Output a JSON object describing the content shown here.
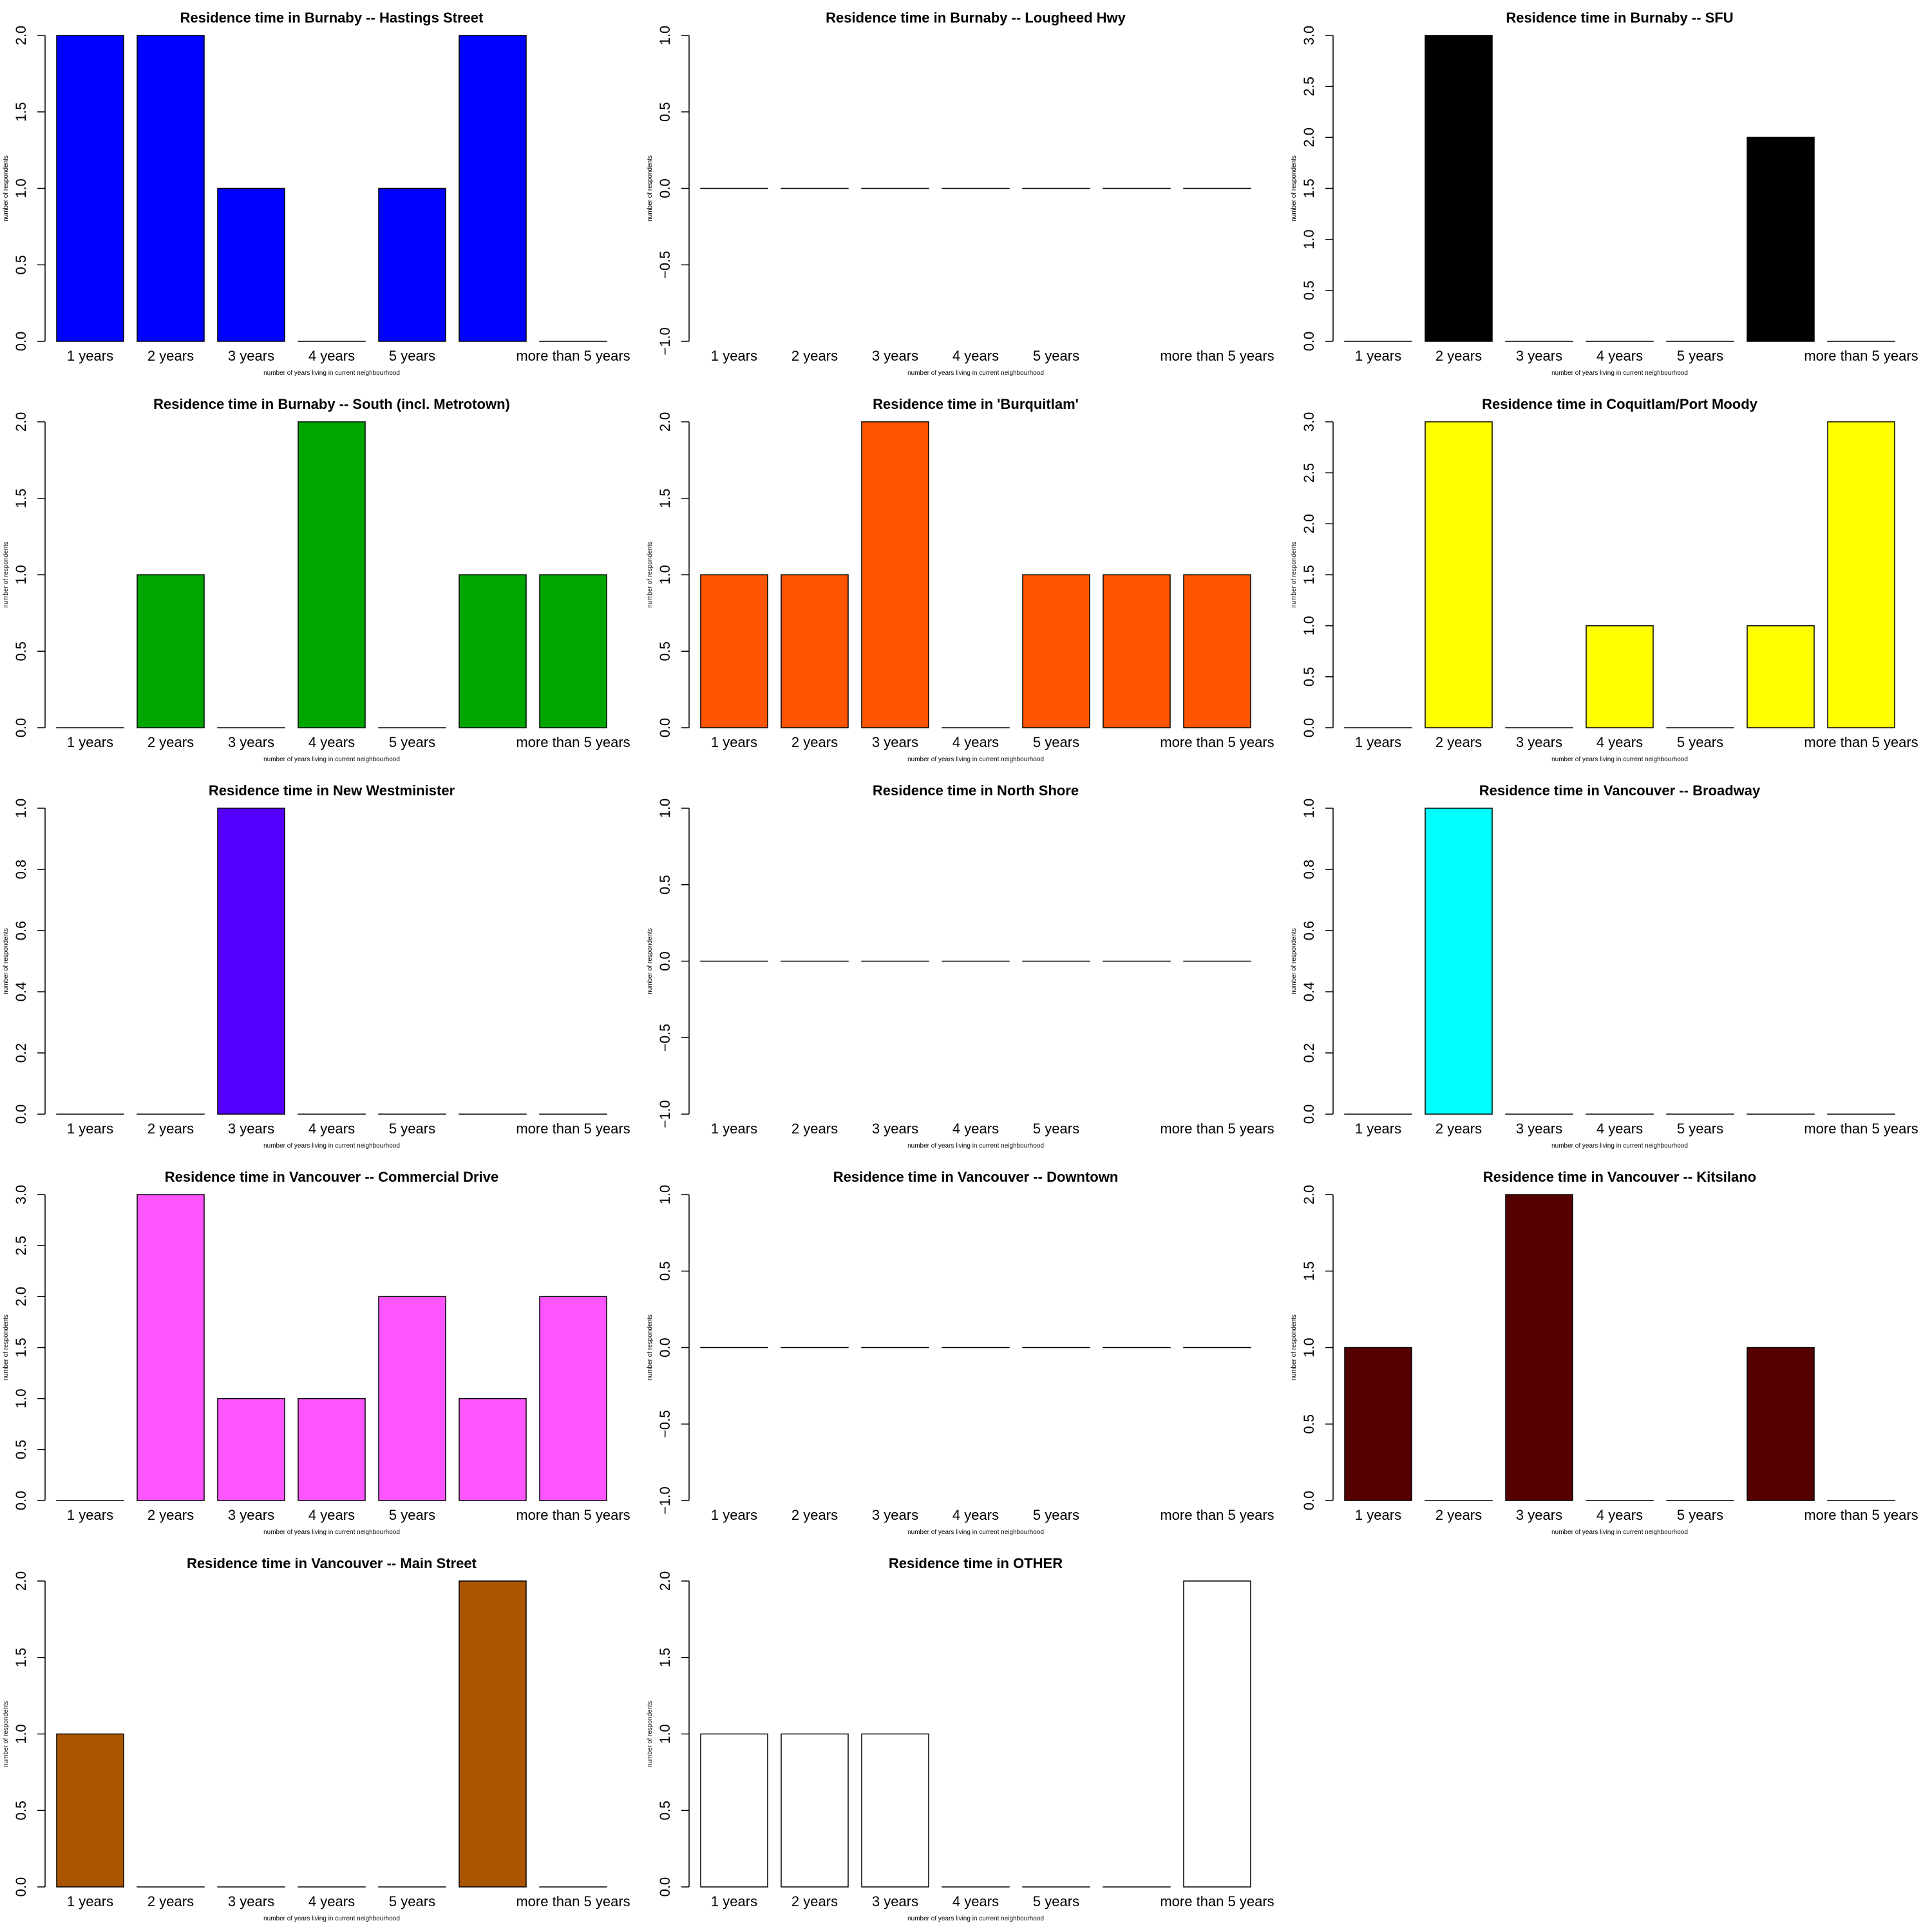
{
  "chart_data": [
    {
      "type": "bar",
      "title": "Residence time in Burnaby -- Hastings Street",
      "xlabel": "number of years living in current neighbourhood",
      "ylabel": "number of respondents",
      "categories": [
        "1 years",
        "2 years",
        "3 years",
        "4 years",
        "5 years",
        "",
        "more than 5 years"
      ],
      "values": [
        2,
        2,
        1,
        0,
        1,
        2,
        0
      ],
      "ylim": [
        0,
        2
      ],
      "yticks": [
        "0.0",
        "0.5",
        "1.0",
        "1.5",
        "2.0"
      ],
      "color": "#0000ff"
    },
    {
      "type": "bar",
      "title": "Residence time in Burnaby -- Lougheed Hwy",
      "xlabel": "number of years living in current neighbourhood",
      "ylabel": "number of respondents",
      "categories": [
        "1 years",
        "2 years",
        "3 years",
        "4 years",
        "5 years",
        "",
        "more than 5 years"
      ],
      "values": [
        0,
        0,
        0,
        0,
        0,
        0,
        0
      ],
      "ylim": [
        -1,
        1
      ],
      "yticks": [
        "−1.0",
        "−0.5",
        "0.0",
        "0.5",
        "1.0"
      ],
      "color": "#ffffff"
    },
    {
      "type": "bar",
      "title": "Residence time in Burnaby -- SFU",
      "xlabel": "number of years living in current neighbourhood",
      "ylabel": "number of respondents",
      "categories": [
        "1 years",
        "2 years",
        "3 years",
        "4 years",
        "5 years",
        "",
        "more than 5 years"
      ],
      "values": [
        0,
        3,
        0,
        0,
        0,
        2,
        0
      ],
      "ylim": [
        0,
        3
      ],
      "yticks": [
        "0.0",
        "0.5",
        "1.0",
        "1.5",
        "2.0",
        "2.5",
        "3.0"
      ],
      "color": "#000000"
    },
    {
      "type": "bar",
      "title": "Residence time in Burnaby -- South (incl. Metrotown)",
      "xlabel": "number of years living in current neighbourhood",
      "ylabel": "number of respondents",
      "categories": [
        "1 years",
        "2 years",
        "3 years",
        "4 years",
        "5 years",
        "",
        "more than 5 years"
      ],
      "values": [
        0,
        1,
        0,
        2,
        0,
        1,
        1
      ],
      "ylim": [
        0,
        2
      ],
      "yticks": [
        "0.0",
        "0.5",
        "1.0",
        "1.5",
        "2.0"
      ],
      "color": "#00a600"
    },
    {
      "type": "bar",
      "title": "Residence time in 'Burquitlam'",
      "xlabel": "number of years living in current neighbourhood",
      "ylabel": "number of respondents",
      "categories": [
        "1 years",
        "2 years",
        "3 years",
        "4 years",
        "5 years",
        "",
        "more than 5 years"
      ],
      "values": [
        1,
        1,
        2,
        0,
        1,
        1,
        1
      ],
      "ylim": [
        0,
        2
      ],
      "yticks": [
        "0.0",
        "0.5",
        "1.0",
        "1.5",
        "2.0"
      ],
      "color": "#ff5500"
    },
    {
      "type": "bar",
      "title": "Residence time in Coquitlam/Port Moody",
      "xlabel": "number of years living in current neighbourhood",
      "ylabel": "number of respondents",
      "categories": [
        "1 years",
        "2 years",
        "3 years",
        "4 years",
        "5 years",
        "",
        "more than 5 years"
      ],
      "values": [
        0,
        3,
        0,
        1,
        0,
        1,
        3
      ],
      "ylim": [
        0,
        3
      ],
      "yticks": [
        "0.0",
        "0.5",
        "1.0",
        "1.5",
        "2.0",
        "2.5",
        "3.0"
      ],
      "color": "#ffff00"
    },
    {
      "type": "bar",
      "title": "Residence time in New Westminister",
      "xlabel": "number of years living in current neighbourhood",
      "ylabel": "number of respondents",
      "categories": [
        "1 years",
        "2 years",
        "3 years",
        "4 years",
        "5 years",
        "",
        "more than 5 years"
      ],
      "values": [
        0,
        0,
        1,
        0,
        0,
        0,
        0
      ],
      "ylim": [
        0,
        1
      ],
      "yticks": [
        "0.0",
        "0.2",
        "0.4",
        "0.6",
        "0.8",
        "1.0"
      ],
      "color": "#5500ff"
    },
    {
      "type": "bar",
      "title": "Residence time in North Shore",
      "xlabel": "number of years living in current neighbourhood",
      "ylabel": "number of respondents",
      "categories": [
        "1 years",
        "2 years",
        "3 years",
        "4 years",
        "5 years",
        "",
        "more than 5 years"
      ],
      "values": [
        0,
        0,
        0,
        0,
        0,
        0,
        0
      ],
      "ylim": [
        -1,
        1
      ],
      "yticks": [
        "−1.0",
        "−0.5",
        "0.0",
        "0.5",
        "1.0"
      ],
      "color": "#ffffff"
    },
    {
      "type": "bar",
      "title": "Residence time in Vancouver -- Broadway",
      "xlabel": "number of years living in current neighbourhood",
      "ylabel": "number of respondents",
      "categories": [
        "1 years",
        "2 years",
        "3 years",
        "4 years",
        "5 years",
        "",
        "more than 5 years"
      ],
      "values": [
        0,
        1,
        0,
        0,
        0,
        0,
        0
      ],
      "ylim": [
        0,
        1
      ],
      "yticks": [
        "0.0",
        "0.2",
        "0.4",
        "0.6",
        "0.8",
        "1.0"
      ],
      "color": "#00ffff"
    },
    {
      "type": "bar",
      "title": "Residence time in Vancouver -- Commercial Drive",
      "xlabel": "number of years living in current neighbourhood",
      "ylabel": "number of respondents",
      "categories": [
        "1 years",
        "2 years",
        "3 years",
        "4 years",
        "5 years",
        "",
        "more than 5 years"
      ],
      "values": [
        0,
        3,
        1,
        1,
        2,
        1,
        2
      ],
      "ylim": [
        0,
        3
      ],
      "yticks": [
        "0.0",
        "0.5",
        "1.0",
        "1.5",
        "2.0",
        "2.5",
        "3.0"
      ],
      "color": "#ff55ff"
    },
    {
      "type": "bar",
      "title": "Residence time in Vancouver -- Downtown",
      "xlabel": "number of years living in current neighbourhood",
      "ylabel": "number of respondents",
      "categories": [
        "1 years",
        "2 years",
        "3 years",
        "4 years",
        "5 years",
        "",
        "more than 5 years"
      ],
      "values": [
        0,
        0,
        0,
        0,
        0,
        0,
        0
      ],
      "ylim": [
        -1,
        1
      ],
      "yticks": [
        "−1.0",
        "−0.5",
        "0.0",
        "0.5",
        "1.0"
      ],
      "color": "#ffffff"
    },
    {
      "type": "bar",
      "title": "Residence time in Vancouver -- Kitsilano",
      "xlabel": "number of years living in current neighbourhood",
      "ylabel": "number of respondents",
      "categories": [
        "1 years",
        "2 years",
        "3 years",
        "4 years",
        "5 years",
        "",
        "more than 5 years"
      ],
      "values": [
        1,
        0,
        2,
        0,
        0,
        1,
        0
      ],
      "ylim": [
        0,
        2
      ],
      "yticks": [
        "0.0",
        "0.5",
        "1.0",
        "1.5",
        "2.0"
      ],
      "color": "#550000"
    },
    {
      "type": "bar",
      "title": "Residence time in Vancouver -- Main Street",
      "xlabel": "number of years living in current neighbourhood",
      "ylabel": "number of respondents",
      "categories": [
        "1 years",
        "2 years",
        "3 years",
        "4 years",
        "5 years",
        "",
        "more than 5 years"
      ],
      "values": [
        1,
        0,
        0,
        0,
        0,
        2,
        0
      ],
      "ylim": [
        0,
        2
      ],
      "yticks": [
        "0.0",
        "0.5",
        "1.0",
        "1.5",
        "2.0"
      ],
      "color": "#aa5500"
    },
    {
      "type": "bar",
      "title": "Residence time in OTHER",
      "xlabel": "number of years living in current neighbourhood",
      "ylabel": "number of respondents",
      "categories": [
        "1 years",
        "2 years",
        "3 years",
        "4 years",
        "5 years",
        "",
        "more than 5 years"
      ],
      "values": [
        1,
        1,
        1,
        0,
        0,
        0,
        2
      ],
      "ylim": [
        0,
        2
      ],
      "yticks": [
        "0.0",
        "0.5",
        "1.0",
        "1.5",
        "2.0"
      ],
      "color": "#ffffff"
    }
  ]
}
